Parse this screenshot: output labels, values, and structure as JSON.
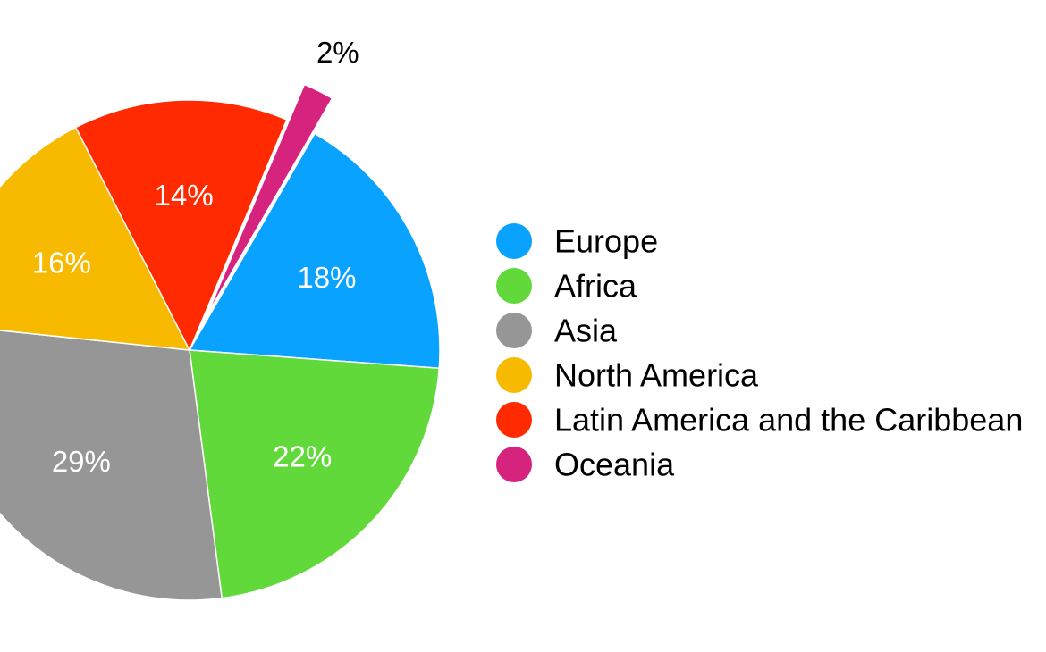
{
  "chart_data": {
    "type": "pie",
    "title": "",
    "value_unit": "%",
    "slices": [
      {
        "label": "Europe",
        "value": 18,
        "display": "18%",
        "color": "#0AA2FF"
      },
      {
        "label": "Africa",
        "value": 22,
        "display": "22%",
        "color": "#62D93A"
      },
      {
        "label": "Asia",
        "value": 29,
        "display": "29%",
        "color": "#969696"
      },
      {
        "label": "North America",
        "value": 16,
        "display": "16%",
        "color": "#F8BA00"
      },
      {
        "label": "Latin America and the Caribbean",
        "value": 14,
        "display": "14%",
        "color": "#FF2A00"
      },
      {
        "label": "Oceania",
        "value": 2,
        "display": "2%",
        "color": "#D6237E",
        "exploded": true,
        "label_outside": true
      }
    ],
    "legend_position": "right",
    "legend": [
      "Europe",
      "Africa",
      "Asia",
      "North America",
      "Latin America and the Caribbean",
      "Oceania"
    ]
  }
}
